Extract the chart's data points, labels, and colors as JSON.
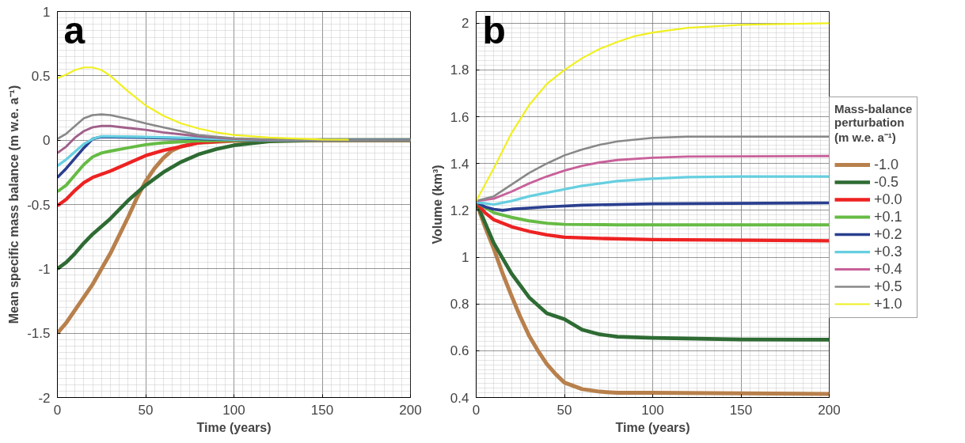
{
  "chart_data": [
    {
      "type": "line",
      "title": "a",
      "xlabel": "Time (years)",
      "ylabel": "Mean specific mass balance (m w.e. a⁻¹)",
      "xlim": [
        0,
        200
      ],
      "ylim": [
        -2,
        1
      ],
      "xticks": [
        0,
        50,
        100,
        150,
        200
      ],
      "yticks": [
        -2,
        -1.5,
        -1,
        -0.5,
        0,
        0.5,
        1
      ],
      "grid": true,
      "legend": false,
      "line_style": "solid",
      "marker": "none",
      "series": [
        {
          "color": "#b8804c",
          "x": [
            0,
            5,
            10,
            15,
            20,
            25,
            30,
            35,
            40,
            45,
            50,
            55,
            60,
            65,
            70,
            80,
            100,
            120,
            200
          ],
          "values": [
            -1.5,
            -1.42,
            -1.32,
            -1.22,
            -1.12,
            -1.0,
            -0.88,
            -0.74,
            -0.6,
            -0.45,
            -0.32,
            -0.22,
            -0.14,
            -0.08,
            -0.05,
            -0.02,
            -0.005,
            0,
            0
          ]
        },
        {
          "color": "#2e6b33",
          "x": [
            0,
            5,
            10,
            15,
            20,
            30,
            40,
            50,
            60,
            70,
            80,
            90,
            100,
            120,
            150,
            200
          ],
          "values": [
            -1.0,
            -0.95,
            -0.88,
            -0.8,
            -0.73,
            -0.61,
            -0.47,
            -0.35,
            -0.25,
            -0.17,
            -0.11,
            -0.07,
            -0.04,
            -0.01,
            0,
            0
          ]
        },
        {
          "color": "#ee2222",
          "x": [
            0,
            5,
            10,
            15,
            20,
            30,
            40,
            50,
            60,
            70,
            80,
            90,
            100,
            200
          ],
          "values": [
            -0.51,
            -0.46,
            -0.39,
            -0.33,
            -0.29,
            -0.24,
            -0.18,
            -0.12,
            -0.08,
            -0.05,
            -0.02,
            -0.01,
            0,
            0
          ]
        },
        {
          "color": "#66bb44",
          "x": [
            0,
            5,
            10,
            15,
            20,
            25,
            30,
            40,
            50,
            60,
            80,
            100,
            200
          ],
          "values": [
            -0.4,
            -0.35,
            -0.27,
            -0.19,
            -0.13,
            -0.1,
            -0.085,
            -0.06,
            -0.035,
            -0.02,
            -0.005,
            0,
            0
          ]
        },
        {
          "color": "#2a3f8f",
          "x": [
            0,
            5,
            10,
            15,
            20,
            25,
            30,
            50,
            80,
            100,
            120,
            200
          ],
          "values": [
            -0.29,
            -0.22,
            -0.14,
            -0.06,
            0.01,
            0.025,
            0.025,
            0.02,
            0.01,
            0.005,
            0,
            0
          ]
        },
        {
          "color": "#66cfe0",
          "x": [
            0,
            5,
            10,
            15,
            20,
            25,
            30,
            50,
            80,
            100,
            120,
            200
          ],
          "values": [
            -0.2,
            -0.15,
            -0.09,
            -0.03,
            0.01,
            0.03,
            0.03,
            0.025,
            0.015,
            0.005,
            0,
            0
          ]
        },
        {
          "color": "#a0608a",
          "x": [
            0,
            5,
            10,
            15,
            20,
            25,
            30,
            40,
            50,
            60,
            80,
            100,
            120,
            150,
            200
          ],
          "values": [
            -0.1,
            -0.05,
            0.02,
            0.07,
            0.1,
            0.11,
            0.11,
            0.095,
            0.08,
            0.06,
            0.03,
            0.01,
            0.003,
            0,
            0
          ]
        },
        {
          "color": "#888888",
          "x": [
            0,
            5,
            10,
            15,
            20,
            25,
            30,
            40,
            50,
            60,
            70,
            80,
            100,
            120,
            150,
            200
          ],
          "values": [
            0.01,
            0.05,
            0.11,
            0.17,
            0.195,
            0.2,
            0.195,
            0.165,
            0.13,
            0.1,
            0.07,
            0.04,
            0.015,
            0.005,
            0,
            0
          ]
        },
        {
          "color": "#f0f020",
          "x": [
            0,
            5,
            10,
            15,
            20,
            25,
            30,
            40,
            50,
            60,
            70,
            80,
            90,
            100,
            120,
            150,
            165
          ],
          "values": [
            0.48,
            0.51,
            0.545,
            0.565,
            0.565,
            0.545,
            0.5,
            0.38,
            0.27,
            0.19,
            0.13,
            0.09,
            0.06,
            0.04,
            0.02,
            0.005,
            0.003
          ]
        }
      ]
    },
    {
      "type": "line",
      "title": "b",
      "xlabel": "Time (years)",
      "ylabel": "Volume (km³)",
      "legend_title": "Mass-balance perturbation (m w.e. a⁻¹)",
      "xlim": [
        0,
        200
      ],
      "ylim": [
        0.4,
        2.05
      ],
      "xticks": [
        0,
        50,
        100,
        150,
        200
      ],
      "yticks": [
        0.4,
        0.6,
        0.8,
        1,
        1.2,
        1.4,
        1.6,
        1.8,
        2
      ],
      "grid": true,
      "legend": "right",
      "line_style": "solid",
      "marker": "none",
      "series": [
        {
          "name": "-1.0",
          "color": "#b8804c",
          "x": [
            0,
            5,
            10,
            15,
            20,
            25,
            30,
            35,
            40,
            45,
            50,
            60,
            70,
            80,
            100,
            200
          ],
          "values": [
            1.235,
            1.13,
            1.035,
            0.93,
            0.835,
            0.745,
            0.664,
            0.6,
            0.543,
            0.5,
            0.464,
            0.436,
            0.425,
            0.42,
            0.42,
            0.415
          ]
        },
        {
          "name": "-0.5",
          "color": "#2e6b33",
          "x": [
            0,
            10,
            20,
            30,
            40,
            50,
            60,
            70,
            80,
            100,
            150,
            200
          ],
          "values": [
            1.235,
            1.06,
            0.93,
            0.828,
            0.76,
            0.735,
            0.69,
            0.67,
            0.66,
            0.655,
            0.648,
            0.647
          ]
        },
        {
          "name": "+0.0",
          "color": "#ee2222",
          "x": [
            0,
            5,
            10,
            20,
            30,
            40,
            50,
            70,
            100,
            200
          ],
          "values": [
            1.235,
            1.19,
            1.16,
            1.13,
            1.11,
            1.095,
            1.085,
            1.08,
            1.075,
            1.07
          ]
        },
        {
          "name": "+0.1",
          "color": "#66bb44",
          "x": [
            0,
            10,
            20,
            30,
            40,
            50,
            80,
            200
          ],
          "values": [
            1.235,
            1.19,
            1.17,
            1.155,
            1.145,
            1.14,
            1.138,
            1.138
          ]
        },
        {
          "name": "+0.2",
          "color": "#2a3f8f",
          "x": [
            0,
            5,
            10,
            15,
            20,
            40,
            60,
            100,
            200
          ],
          "values": [
            1.235,
            1.215,
            1.205,
            1.2,
            1.205,
            1.215,
            1.222,
            1.228,
            1.232
          ]
        },
        {
          "name": "+0.3",
          "color": "#66cfe0",
          "x": [
            0,
            5,
            10,
            20,
            30,
            40,
            50,
            60,
            80,
            100,
            120,
            150,
            200
          ],
          "values": [
            1.235,
            1.23,
            1.225,
            1.24,
            1.26,
            1.275,
            1.29,
            1.305,
            1.325,
            1.335,
            1.342,
            1.345,
            1.345
          ]
        },
        {
          "name": "+0.4",
          "color": "#c8609a",
          "x": [
            0,
            10,
            20,
            30,
            40,
            50,
            60,
            70,
            80,
            100,
            120,
            200
          ],
          "values": [
            1.24,
            1.25,
            1.28,
            1.315,
            1.345,
            1.37,
            1.39,
            1.405,
            1.415,
            1.425,
            1.43,
            1.432
          ]
        },
        {
          "name": "+0.5",
          "color": "#888888",
          "x": [
            0,
            10,
            20,
            30,
            40,
            50,
            60,
            70,
            80,
            100,
            120,
            200
          ],
          "values": [
            1.24,
            1.26,
            1.31,
            1.36,
            1.4,
            1.435,
            1.46,
            1.48,
            1.495,
            1.51,
            1.515,
            1.515
          ]
        },
        {
          "name": "+1.0",
          "color": "#f0f020",
          "x": [
            0,
            10,
            20,
            30,
            40,
            50,
            60,
            70,
            80,
            90,
            100,
            120,
            150,
            200
          ],
          "values": [
            1.24,
            1.38,
            1.53,
            1.65,
            1.74,
            1.8,
            1.85,
            1.89,
            1.92,
            1.945,
            1.96,
            1.98,
            1.993,
            2.0
          ]
        }
      ]
    }
  ]
}
